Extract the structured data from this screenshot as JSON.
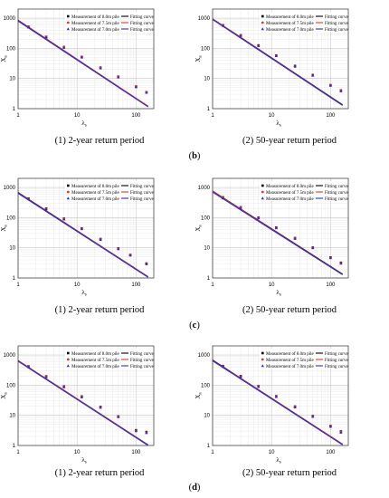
{
  "figure": {
    "rows": [
      {
        "row_label": "b",
        "panels": [
          {
            "caption": "(1) 2-year return period"
          },
          {
            "caption": "(2) 50-year return period"
          }
        ]
      },
      {
        "row_label": "c",
        "panels": [
          {
            "caption": "(1) 2-year return period"
          },
          {
            "caption": "(2) 50-year return period"
          }
        ]
      },
      {
        "row_label": "d",
        "panels": [
          {
            "caption": "(1) 2-year return period"
          },
          {
            "caption": "(2) 50-year return period"
          }
        ]
      }
    ]
  },
  "chart_data": [
    {
      "type": "scatter",
      "panel": "b-1",
      "xscale": "log",
      "yscale": "log",
      "xlim": [
        1,
        200
      ],
      "ylim": [
        1,
        2000
      ],
      "xticks": [
        1,
        10,
        100
      ],
      "xtick_labels": [
        "1",
        "10",
        "100"
      ],
      "yticks": [
        1,
        10,
        100,
        1000
      ],
      "ytick_labels": [
        "1",
        "10",
        "100",
        "1000"
      ],
      "xlabel": "λ",
      "xlabel_sub": "s",
      "ylabel": "X",
      "ylabel_sub": "a",
      "grid": true,
      "legend_position": "top-right",
      "series": [
        {
          "name": "Measurement of 8.0m pile",
          "fit_name": "Fitting curve",
          "color": "#000000",
          "marker": "square",
          "x": [
            1.5,
            3,
            6,
            12,
            25,
            50,
            100,
            150
          ],
          "y": [
            520,
            240,
            110,
            52,
            23,
            11.5,
            5.4,
            3.5
          ],
          "fit_x": [
            1,
            160
          ],
          "fit_y": [
            850,
            1.2
          ]
        },
        {
          "name": "Measurement of 7.5m pile",
          "fit_name": "Fitting curve",
          "color": "#e8332a",
          "marker": "circle",
          "x": [
            1.5,
            3,
            6,
            12,
            25,
            50,
            100,
            150
          ],
          "y": [
            520,
            240,
            110,
            52,
            23,
            11.5,
            5.4,
            3.5
          ],
          "fit_x": [
            1,
            160
          ],
          "fit_y": [
            830,
            1.2
          ]
        },
        {
          "name": "Measurement of 7.0m pile",
          "fit_name": "Fitting curve",
          "color": "#2a2ad8",
          "marker": "triangle",
          "x": [
            1.5,
            3,
            6,
            12,
            25,
            50,
            100,
            150
          ],
          "y": [
            490,
            230,
            105,
            50,
            22,
            11,
            5.2,
            3.4
          ],
          "fit_x": [
            1,
            160
          ],
          "fit_y": [
            800,
            1.15
          ]
        }
      ]
    },
    {
      "type": "scatter",
      "panel": "b-2",
      "xscale": "log",
      "yscale": "log",
      "xlim": [
        1,
        200
      ],
      "ylim": [
        1,
        2000
      ],
      "xticks": [
        1,
        10,
        100
      ],
      "xtick_labels": [
        "1",
        "10",
        "100"
      ],
      "yticks": [
        1,
        10,
        100,
        1000
      ],
      "ytick_labels": [
        "1",
        "10",
        "100",
        "1000"
      ],
      "xlabel": "λ",
      "xlabel_sub": "s",
      "ylabel": "X",
      "ylabel_sub": "a",
      "grid": true,
      "legend_position": "top-right",
      "series": [
        {
          "name": "Measurement of 8.0m pile",
          "fit_name": "Fitting curve",
          "color": "#000000",
          "marker": "square",
          "x": [
            1.5,
            3,
            6,
            12,
            25,
            50,
            100,
            150
          ],
          "y": [
            580,
            270,
            125,
            58,
            26,
            13,
            6,
            4
          ],
          "fit_x": [
            1,
            160
          ],
          "fit_y": [
            950,
            1.35
          ]
        },
        {
          "name": "Measurement of 7.5m pile",
          "fit_name": "Fitting curve",
          "color": "#e8332a",
          "marker": "circle",
          "x": [
            1.5,
            3,
            6,
            12,
            25,
            50,
            100,
            150
          ],
          "y": [
            570,
            265,
            122,
            57,
            25,
            12.7,
            5.9,
            3.9
          ],
          "fit_x": [
            1,
            160
          ],
          "fit_y": [
            930,
            1.3
          ]
        },
        {
          "name": "Measurement of 7.0m pile",
          "fit_name": "Fitting curve",
          "color": "#2a2ad8",
          "marker": "triangle",
          "x": [
            1.5,
            3,
            6,
            12,
            25,
            50,
            100,
            150
          ],
          "y": [
            560,
            260,
            120,
            56,
            25,
            12.5,
            5.8,
            3.8
          ],
          "fit_x": [
            1,
            160
          ],
          "fit_y": [
            900,
            1.28
          ]
        }
      ]
    },
    {
      "type": "scatter",
      "panel": "c-1",
      "xscale": "log",
      "yscale": "log",
      "xlim": [
        1,
        200
      ],
      "ylim": [
        1,
        2000
      ],
      "xticks": [
        1,
        10,
        100
      ],
      "xtick_labels": [
        "1",
        "10",
        "100"
      ],
      "yticks": [
        1,
        10,
        100,
        1000
      ],
      "ytick_labels": [
        "1",
        "10",
        "100",
        "1000"
      ],
      "xlabel": "λ",
      "xlabel_sub": "s",
      "ylabel": "X",
      "ylabel_sub": "a",
      "grid": true,
      "legend_position": "top-right",
      "series": [
        {
          "name": "Measurement of 8.0m pile",
          "fit_name": "Fitting curve",
          "color": "#000000",
          "marker": "square",
          "x": [
            1.5,
            3,
            6,
            12,
            25,
            50,
            80,
            150
          ],
          "y": [
            430,
            200,
            92,
            44,
            19.5,
            9.5,
            5.8,
            3.0
          ],
          "fit_x": [
            1,
            160
          ],
          "fit_y": [
            680,
            1.1
          ]
        },
        {
          "name": "Measurement of 7.5m pile",
          "fit_name": "Fitting curve",
          "color": "#e8332a",
          "marker": "circle",
          "x": [
            1.5,
            3,
            6,
            12,
            25,
            50,
            80,
            150
          ],
          "y": [
            420,
            195,
            90,
            43,
            19,
            9.3,
            5.7,
            2.9
          ],
          "fit_x": [
            1,
            160
          ],
          "fit_y": [
            660,
            1.08
          ]
        },
        {
          "name": "Measurement of 7.0m pile",
          "fit_name": "Fitting curve",
          "color": "#2a2ad8",
          "marker": "triangle",
          "x": [
            1.5,
            3,
            6,
            12,
            25,
            50,
            80,
            150
          ],
          "y": [
            410,
            190,
            88,
            42,
            18.5,
            9.1,
            5.6,
            2.9
          ],
          "fit_x": [
            1,
            160
          ],
          "fit_y": [
            640,
            1.05
          ]
        }
      ]
    },
    {
      "type": "scatter",
      "panel": "c-2",
      "xscale": "log",
      "yscale": "log",
      "xlim": [
        1,
        200
      ],
      "ylim": [
        1,
        2000
      ],
      "xticks": [
        1,
        10,
        100
      ],
      "xtick_labels": [
        "1",
        "10",
        "100"
      ],
      "yticks": [
        1,
        10,
        100,
        1000
      ],
      "ytick_labels": [
        "1",
        "10",
        "100",
        "1000"
      ],
      "xlabel": "λ",
      "xlabel_sub": "s",
      "ylabel": "X",
      "ylabel_sub": "a",
      "grid": true,
      "legend_position": "top-right",
      "series": [
        {
          "name": "Measurement of 8.0m pile",
          "fit_name": "Fitting curve",
          "color": "#000000",
          "marker": "square",
          "x": [
            1.5,
            3,
            6,
            12,
            25,
            50,
            100,
            150
          ],
          "y": [
            470,
            220,
            100,
            47,
            21,
            10.2,
            4.8,
            3.2
          ],
          "fit_x": [
            1,
            160
          ],
          "fit_y": [
            760,
            1.35
          ]
        },
        {
          "name": "Measurement of 7.5m pile",
          "fit_name": "Fitting curve",
          "color": "#e8332a",
          "marker": "circle",
          "x": [
            1.5,
            3,
            6,
            12,
            25,
            50,
            100,
            150
          ],
          "y": [
            460,
            215,
            98,
            46,
            20.5,
            10,
            4.7,
            3.1
          ],
          "fit_x": [
            1,
            160
          ],
          "fit_y": [
            740,
            1.3
          ]
        },
        {
          "name": "Measurement of 7.0m pile",
          "fit_name": "Fitting curve",
          "color": "#2a2ad8",
          "marker": "triangle",
          "x": [
            1.5,
            3,
            6,
            12,
            25,
            50,
            100,
            150
          ],
          "y": [
            440,
            205,
            95,
            45,
            20,
            9.8,
            4.6,
            3.0
          ],
          "fit_x": [
            1,
            160
          ],
          "fit_y": [
            700,
            1.28
          ]
        }
      ]
    },
    {
      "type": "scatter",
      "panel": "d-1",
      "xscale": "log",
      "yscale": "log",
      "xlim": [
        1,
        200
      ],
      "ylim": [
        1,
        2000
      ],
      "xticks": [
        1,
        10,
        100
      ],
      "xtick_labels": [
        "1",
        "10",
        "100"
      ],
      "yticks": [
        1,
        10,
        100,
        1000
      ],
      "ytick_labels": [
        "1",
        "10",
        "100",
        "1000"
      ],
      "xlabel": "λ",
      "xlabel_sub": "s",
      "ylabel": "X",
      "ylabel_sub": "a",
      "grid": true,
      "legend_position": "top-right",
      "series": [
        {
          "name": "Measurement of 8.0m pile",
          "fit_name": "Fitting curve",
          "color": "#000000",
          "marker": "square",
          "x": [
            1.5,
            3,
            6,
            12,
            25,
            50,
            100,
            150
          ],
          "y": [
            420,
            195,
            90,
            42,
            19,
            9.2,
            3.2,
            2.8
          ],
          "fit_x": [
            1,
            160
          ],
          "fit_y": [
            650,
            1.05
          ]
        },
        {
          "name": "Measurement of 7.5m pile",
          "fit_name": "Fitting curve",
          "color": "#e8332a",
          "marker": "circle",
          "x": [
            1.5,
            3,
            6,
            12,
            25,
            50,
            100,
            150
          ],
          "y": [
            410,
            190,
            88,
            41,
            18.5,
            9,
            3.1,
            2.7
          ],
          "fit_x": [
            1,
            160
          ],
          "fit_y": [
            640,
            1.03
          ]
        },
        {
          "name": "Measurement of 7.0m pile",
          "fit_name": "Fitting curve",
          "color": "#2a2ad8",
          "marker": "triangle",
          "x": [
            1.5,
            3,
            6,
            12,
            25,
            50,
            100,
            150
          ],
          "y": [
            400,
            185,
            86,
            40,
            18,
            8.8,
            3.0,
            2.6
          ],
          "fit_x": [
            1,
            160
          ],
          "fit_y": [
            620,
            1.0
          ]
        }
      ]
    },
    {
      "type": "scatter",
      "panel": "d-2",
      "xscale": "log",
      "yscale": "log",
      "xlim": [
        1,
        200
      ],
      "ylim": [
        1,
        2000
      ],
      "xticks": [
        1,
        10,
        100
      ],
      "xtick_labels": [
        "1",
        "10",
        "100"
      ],
      "yticks": [
        1,
        10,
        100,
        1000
      ],
      "ytick_labels": [
        "1",
        "10",
        "100",
        "1000"
      ],
      "xlabel": "λ",
      "xlabel_sub": "s",
      "ylabel": "X",
      "ylabel_sub": "a",
      "grid": true,
      "legend_position": "top-right",
      "series": [
        {
          "name": "Measurement of 8.0m pile",
          "fit_name": "Fitting curve",
          "color": "#000000",
          "marker": "square",
          "x": [
            1.5,
            3,
            6,
            12,
            25,
            50,
            100,
            150
          ],
          "y": [
            430,
            200,
            92,
            43,
            19.5,
            9.4,
            4.4,
            2.9
          ],
          "fit_x": [
            1,
            160
          ],
          "fit_y": [
            680,
            1.1
          ]
        },
        {
          "name": "Measurement of 7.5m pile",
          "fit_name": "Fitting curve",
          "color": "#e8332a",
          "marker": "circle",
          "x": [
            1.5,
            3,
            6,
            12,
            25,
            50,
            100,
            150
          ],
          "y": [
            420,
            195,
            90,
            42,
            19,
            9.2,
            4.3,
            2.8
          ],
          "fit_x": [
            1,
            160
          ],
          "fit_y": [
            660,
            1.08
          ]
        },
        {
          "name": "Measurement of 7.0m pile",
          "fit_name": "Fitting curve",
          "color": "#2a2ad8",
          "marker": "triangle",
          "x": [
            1.5,
            3,
            6,
            12,
            25,
            50,
            100,
            150
          ],
          "y": [
            410,
            190,
            88,
            41,
            18.5,
            9,
            4.2,
            2.7
          ],
          "fit_x": [
            1,
            160
          ],
          "fit_y": [
            640,
            1.05
          ]
        }
      ]
    }
  ]
}
